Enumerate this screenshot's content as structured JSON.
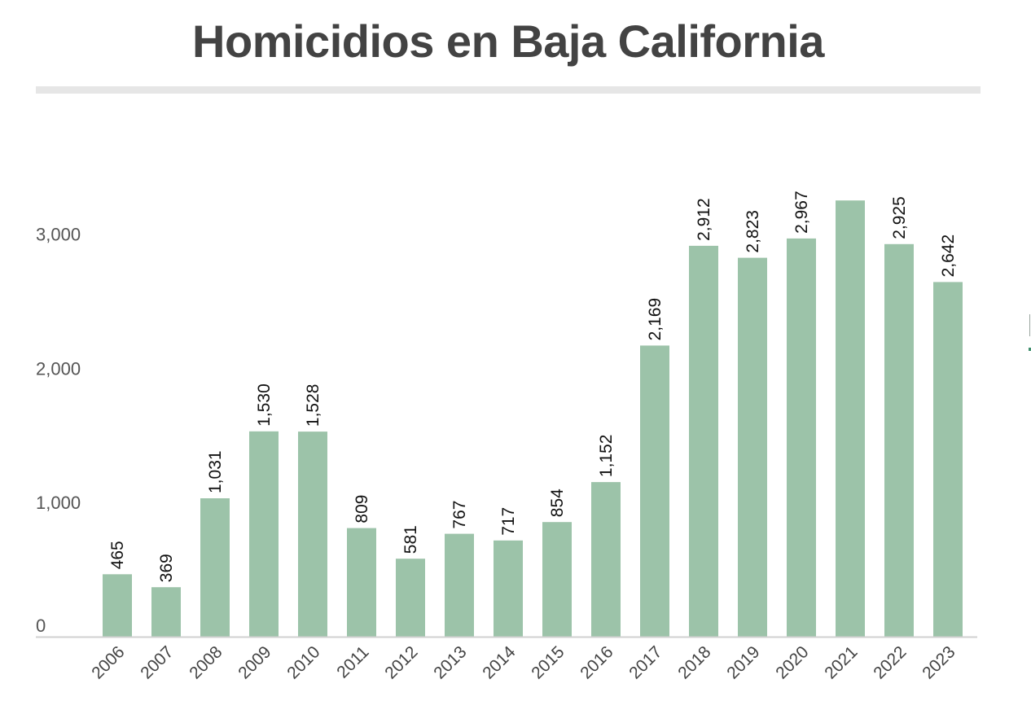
{
  "chart_data": {
    "type": "bar",
    "title": "Homicidios en Baja California",
    "xlabel": "",
    "ylabel": "",
    "ylim": [
      0,
      3200
    ],
    "yticks": [
      0,
      1000,
      2000,
      3000
    ],
    "ytick_labels": [
      "0",
      "1,000",
      "2,000",
      "3,000"
    ],
    "grid": false,
    "legend": "none",
    "bar_color": "#9cc3a9",
    "categories": [
      "2006",
      "2007",
      "2008",
      "2009",
      "2010",
      "2011",
      "2012",
      "2013",
      "2014",
      "2015",
      "2016",
      "2017",
      "2018",
      "2019",
      "2020",
      "2021",
      "2022",
      "2023"
    ],
    "values": [
      465,
      369,
      1031,
      1530,
      1528,
      809,
      581,
      767,
      717,
      854,
      1152,
      2169,
      2912,
      2823,
      2967,
      3250,
      2925,
      2642
    ],
    "value_labels": [
      "465",
      "369",
      "1,031",
      "1,530",
      "1,528",
      "809",
      "581",
      "767",
      "717",
      "854",
      "1,152",
      "2,169",
      "2,912",
      "2,823",
      "2,967",
      "",
      "2,925",
      "2,642"
    ]
  }
}
